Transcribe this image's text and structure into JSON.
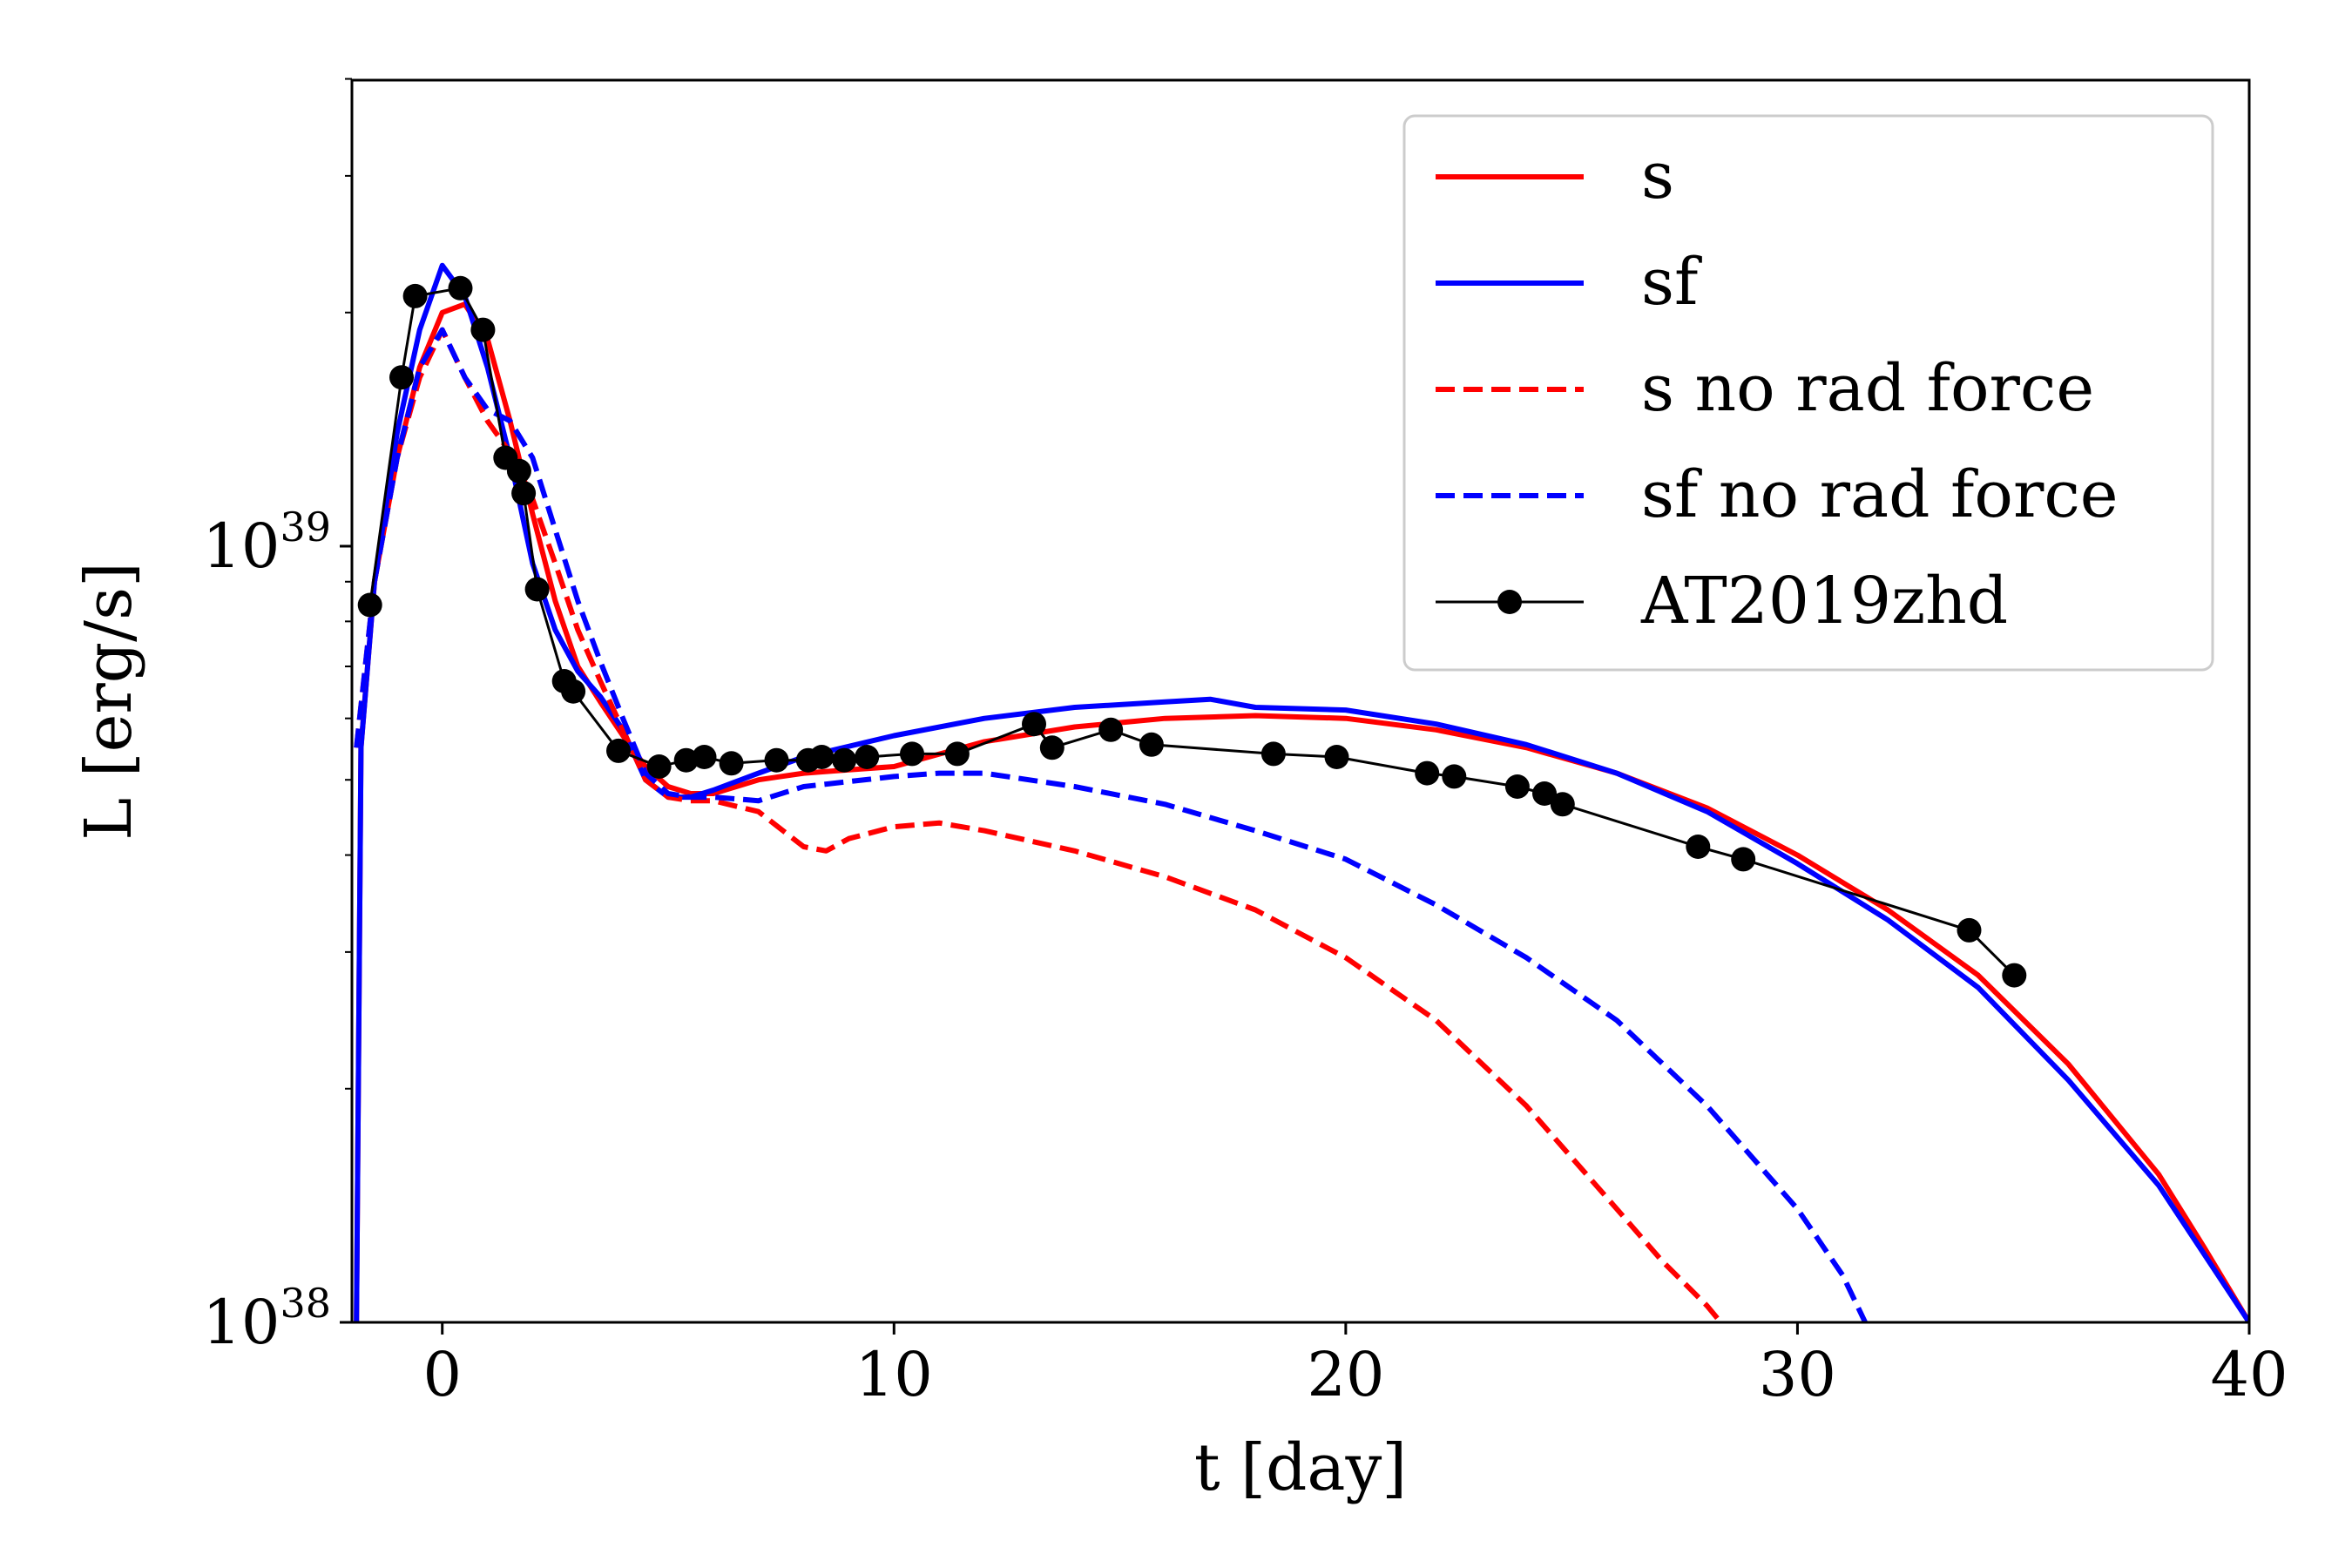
{
  "chart_data": {
    "type": "line",
    "title": "",
    "xlabel": "t [day]",
    "ylabel": "L [erg/s]",
    "xlim": [
      -2,
      40
    ],
    "ylim": [
      1e+38,
      4.2e+39
    ],
    "yscale": "log",
    "x_ticks": [
      {
        "value": 0,
        "label": "0"
      },
      {
        "value": 10,
        "label": "10"
      },
      {
        "value": 20,
        "label": "20"
      },
      {
        "value": 30,
        "label": "30"
      },
      {
        "value": 40,
        "label": "40"
      }
    ],
    "y_ticks": [
      {
        "value": 1e+38,
        "base": "10",
        "exp": "38"
      },
      {
        "value": 1e+39,
        "base": "10",
        "exp": "39"
      }
    ],
    "grid": false,
    "legend_position": "top-right",
    "series": [
      {
        "name": "s",
        "color": "#ff0000",
        "dash": "solid",
        "x": [
          -1.9,
          -1.8,
          -1.5,
          -1,
          -0.5,
          0,
          0.5,
          1,
          1.5,
          2,
          2.5,
          3,
          3.5,
          4,
          4.5,
          5,
          5.5,
          6,
          7,
          8,
          9,
          10,
          12,
          14,
          16,
          18,
          20,
          22,
          24,
          26,
          28,
          30,
          32,
          34,
          36,
          38,
          39,
          40
        ],
        "y": [
          1e+38,
          5.5e+38,
          9e+38,
          1.3e+39,
          1.7e+39,
          2e+39,
          2.05e+39,
          1.85e+39,
          1.45e+39,
          1.1e+39,
          8.5e+38,
          7e+38,
          6.3e+38,
          5.7e+38,
          5.2e+38,
          4.9e+38,
          4.8e+38,
          4.8e+38,
          5e+38,
          5.1e+38,
          5.15e+38,
          5.2e+38,
          5.6e+38,
          5.85e+38,
          6e+38,
          6.05e+38,
          6e+38,
          5.8e+38,
          5.5e+38,
          5.1e+38,
          4.6e+38,
          4e+38,
          3.4e+38,
          2.8e+38,
          2.15e+38,
          1.55e+38,
          1.25e+38,
          1e+38
        ]
      },
      {
        "name": "sf",
        "color": "#0000ff",
        "dash": "solid",
        "x": [
          -1.9,
          -1.8,
          -1.5,
          -1,
          -0.5,
          0,
          0.5,
          1,
          1.5,
          2,
          2.5,
          3,
          3.5,
          4,
          4.5,
          5,
          5.5,
          6,
          7,
          8,
          10,
          12,
          14,
          16,
          17,
          18,
          20,
          22,
          24,
          26,
          28,
          30,
          32,
          34,
          36,
          38,
          40
        ],
        "y": [
          1e+38,
          5.5e+38,
          9e+38,
          1.4e+39,
          1.9e+39,
          2.3e+39,
          2.1e+39,
          1.7e+39,
          1.3e+39,
          9.5e+38,
          7.8e+38,
          6.9e+38,
          6.4e+38,
          5.8e+38,
          5e+38,
          4.75e+38,
          4.75e+38,
          4.85e+38,
          5.1e+38,
          5.35e+38,
          5.7e+38,
          6e+38,
          6.2e+38,
          6.3e+38,
          6.35e+38,
          6.2e+38,
          6.15e+38,
          5.9e+38,
          5.55e+38,
          5.1e+38,
          4.55e+38,
          3.9e+38,
          3.3e+38,
          2.7e+38,
          2.05e+38,
          1.5e+38,
          1e+38
        ]
      },
      {
        "name": "s no rad force",
        "color": "#ff0000",
        "dash": "dashed",
        "x": [
          -1.9,
          -1.5,
          -1,
          -0.5,
          0,
          0.5,
          1,
          1.5,
          2,
          2.5,
          3,
          3.5,
          4,
          4.5,
          5,
          5.5,
          6,
          7,
          8,
          8.5,
          9,
          10,
          11,
          12,
          14,
          16,
          18,
          20,
          22,
          24,
          26,
          27,
          28,
          28.3
        ],
        "y": [
          5.5e+38,
          9e+38,
          1.3e+39,
          1.65e+39,
          1.9e+39,
          1.65e+39,
          1.45e+39,
          1.32e+39,
          1.15e+39,
          9.5e+38,
          7.8e+38,
          6.7e+38,
          5.8e+38,
          5e+38,
          4.75e+38,
          4.7e+38,
          4.7e+38,
          4.55e+38,
          4.1e+38,
          4.05e+38,
          4.2e+38,
          4.35e+38,
          4.4e+38,
          4.3e+38,
          4.05e+38,
          3.75e+38,
          3.4e+38,
          2.95e+38,
          2.45e+38,
          1.9e+38,
          1.4e+38,
          1.2e+38,
          1.05e+38,
          1e+38
        ]
      },
      {
        "name": "sf no rad force",
        "color": "#0000ff",
        "dash": "dashed",
        "x": [
          -1.9,
          -1.5,
          -1,
          -0.5,
          0,
          0.5,
          1,
          1.5,
          2,
          2.5,
          3,
          3.5,
          4,
          4.5,
          5,
          5.5,
          6,
          7,
          8,
          10,
          11,
          12,
          14,
          16,
          18,
          20,
          22,
          24,
          26,
          28,
          30,
          31,
          31.5
        ],
        "y": [
          5.5e+38,
          9e+38,
          1.3e+39,
          1.7e+39,
          1.9e+39,
          1.65e+39,
          1.5e+39,
          1.45e+39,
          1.3e+39,
          1.05e+39,
          8.5e+38,
          7.1e+38,
          6e+38,
          5.1e+38,
          4.8e+38,
          4.75e+38,
          4.75e+38,
          4.7e+38,
          4.9e+38,
          5.05e+38,
          5.1e+38,
          5.1e+38,
          4.9e+38,
          4.65e+38,
          4.3e+38,
          3.95e+38,
          3.45e+38,
          2.95e+38,
          2.45e+38,
          1.9e+38,
          1.4e+38,
          1.15e+38,
          1e+38
        ]
      },
      {
        "name": "AT2019zhd",
        "color": "#000000",
        "dash": "solid",
        "marker": "circle",
        "x": [
          -1.6,
          -0.9,
          -0.6,
          0.4,
          0.9,
          1.4,
          1.7,
          1.8,
          2.1,
          2.7,
          2.9,
          3.9,
          4.8,
          5.4,
          5.8,
          6.4,
          7.4,
          8.1,
          8.4,
          8.9,
          9.4,
          10.4,
          11.4,
          13.1,
          13.5,
          14.8,
          15.7,
          18.4,
          19.8,
          21.8,
          22.4,
          23.8,
          24.4,
          24.8,
          27.8,
          28.8,
          33.8,
          34.8
        ],
        "y": [
          8.4e+38,
          1.65e+39,
          2.1e+39,
          2.15e+39,
          1.9e+39,
          1.3e+39,
          1.25e+39,
          1.17e+39,
          8.8e+38,
          6.7e+38,
          6.5e+38,
          5.45e+38,
          5.2e+38,
          5.3e+38,
          5.35e+38,
          5.25e+38,
          5.3e+38,
          5.3e+38,
          5.35e+38,
          5.3e+38,
          5.35e+38,
          5.4e+38,
          5.4e+38,
          5.9e+38,
          5.5e+38,
          5.8e+38,
          5.55e+38,
          5.4e+38,
          5.35e+38,
          5.1e+38,
          5.05e+38,
          4.9e+38,
          4.8e+38,
          4.65e+38,
          4.1e+38,
          3.95e+38,
          3.2e+38,
          2.8e+38
        ]
      }
    ]
  }
}
